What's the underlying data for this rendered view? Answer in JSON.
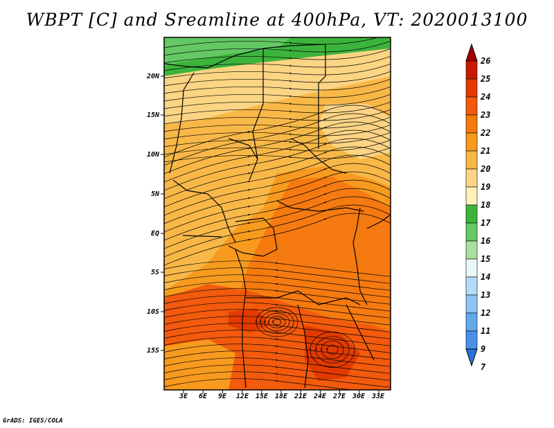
{
  "title": "WBPT [C] and Sreamline at 400hPa, VT: 2020013100",
  "footer": "GrADS: IGES/COLA",
  "lat_labels": [
    "20N",
    "15N",
    "10N",
    "5N",
    "EQ",
    "5S",
    "10S",
    "15S"
  ],
  "lon_labels": [
    "3E",
    "6E",
    "9E",
    "12E",
    "15E",
    "18E",
    "21E",
    "24E",
    "27E",
    "30E",
    "33E"
  ],
  "colorbar": {
    "labels": [
      "26",
      "25",
      "24",
      "23",
      "22",
      "21",
      "20",
      "19",
      "18",
      "17",
      "16",
      "15",
      "14",
      "13",
      "12",
      "11",
      "9",
      "7"
    ],
    "colors": [
      "#a50000",
      "#c81a00",
      "#e23a00",
      "#f25a0c",
      "#f57a10",
      "#f79a1e",
      "#f8b848",
      "#fbd484",
      "#fff0b8",
      "#3cb43c",
      "#64c864",
      "#a8e0a0",
      "#e8f8f8",
      "#b4dcf8",
      "#8cc4f4",
      "#64a8ec",
      "#4890e8",
      "#2c70dc"
    ]
  },
  "map": {
    "lat_range": [
      -20,
      24
    ],
    "lon_range": [
      0,
      35
    ],
    "field": "WBPT",
    "level": "400hPa",
    "valid_time": "2020013100"
  }
}
